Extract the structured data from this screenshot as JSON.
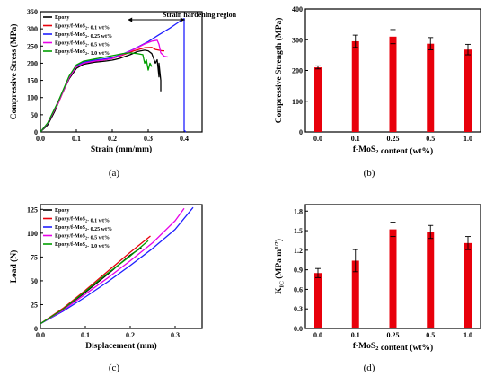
{
  "figure": {
    "panel_labels": [
      "(a)",
      "(b)",
      "(c)",
      "(d)"
    ]
  },
  "chart_data": [
    {
      "id": "a",
      "type": "line",
      "xlabel": "Strain (mm/mm)",
      "ylabel": "Compressive Stress (MPa)",
      "xlim": [
        0.0,
        0.45
      ],
      "ylim": [
        0,
        350
      ],
      "xticks": [
        "0.0",
        "0.1",
        "0.2",
        "0.3",
        "0.4"
      ],
      "yticks": [
        "0",
        "50",
        "100",
        "150",
        "200",
        "250",
        "300",
        "350"
      ],
      "annotation": "Strain hardening region",
      "legend_position": "top-left",
      "series": [
        {
          "name": "Epoxy",
          "color": "#000000",
          "x": [
            0.0,
            0.02,
            0.04,
            0.06,
            0.08,
            0.1,
            0.12,
            0.15,
            0.18,
            0.2,
            0.22,
            0.25,
            0.27,
            0.29,
            0.3,
            0.31,
            0.32,
            0.325,
            0.33,
            0.33,
            0.335,
            0.335
          ],
          "y": [
            0,
            20,
            60,
            110,
            155,
            185,
            197,
            203,
            206,
            209,
            214,
            225,
            234,
            238,
            236,
            228,
            200,
            210,
            160,
            200,
            150,
            118
          ]
        },
        {
          "name": "Epoxy/f-MoS2- 0.1 wt%",
          "color": "#e8000b",
          "x": [
            0.0,
            0.02,
            0.05,
            0.08,
            0.1,
            0.12,
            0.15,
            0.18,
            0.2,
            0.23,
            0.26,
            0.29,
            0.31,
            0.32,
            0.33,
            0.34,
            0.345
          ],
          "y": [
            0,
            25,
            85,
            158,
            190,
            200,
            206,
            210,
            214,
            224,
            236,
            245,
            246,
            240,
            238,
            236,
            236
          ]
        },
        {
          "name": "Epoxy/f-MoS2- 0.25 wt%",
          "color": "#1f1fff",
          "x": [
            0.0,
            0.02,
            0.05,
            0.08,
            0.1,
            0.12,
            0.15,
            0.18,
            0.2,
            0.23,
            0.26,
            0.3,
            0.33,
            0.36,
            0.38,
            0.395,
            0.4,
            0.4,
            0.405
          ],
          "y": [
            0,
            25,
            88,
            160,
            192,
            203,
            209,
            213,
            216,
            227,
            241,
            263,
            283,
            302,
            316,
            327,
            330,
            5,
            0
          ]
        },
        {
          "name": "Epoxy/f-MoS2- 0.5 wt%",
          "color": "#e800e8",
          "x": [
            0.0,
            0.02,
            0.05,
            0.08,
            0.1,
            0.12,
            0.15,
            0.18,
            0.2,
            0.23,
            0.26,
            0.29,
            0.31,
            0.325,
            0.33,
            0.335,
            0.345,
            0.355
          ],
          "y": [
            0,
            25,
            86,
            158,
            190,
            200,
            206,
            210,
            214,
            226,
            240,
            256,
            264,
            267,
            255,
            230,
            220,
            218
          ]
        },
        {
          "name": "Epoxy/f-MoS2- 1.0 wt%",
          "color": "#009e00",
          "x": [
            0.0,
            0.02,
            0.05,
            0.08,
            0.1,
            0.12,
            0.15,
            0.18,
            0.2,
            0.23,
            0.25,
            0.27,
            0.285,
            0.29,
            0.295,
            0.3,
            0.305,
            0.31
          ],
          "y": [
            0,
            26,
            90,
            163,
            195,
            206,
            212,
            218,
            222,
            228,
            230,
            228,
            225,
            200,
            210,
            180,
            200,
            190
          ]
        }
      ]
    },
    {
      "id": "b",
      "type": "bar",
      "xlabel": "f-MoS2 content (wt%)",
      "ylabel": "Compressive Strength (MPa)",
      "ylim": [
        0,
        400
      ],
      "yticks": [
        "0",
        "100",
        "200",
        "300",
        "400"
      ],
      "categories": [
        "0.0",
        "0.1",
        "0.25",
        "0.5",
        "1.0"
      ],
      "values": [
        210,
        295,
        310,
        287,
        268
      ],
      "errors": [
        5,
        20,
        23,
        20,
        17
      ],
      "bar_color": "#e8000b"
    },
    {
      "id": "c",
      "type": "line",
      "xlabel": "Displacement (mm)",
      "ylabel": "Load (N)",
      "xlim": [
        0.0,
        0.36
      ],
      "ylim": [
        0,
        130
      ],
      "xticks": [
        "0.0",
        "0.1",
        "0.2",
        "0.3"
      ],
      "yticks": [
        "0",
        "25",
        "50",
        "75",
        "100",
        "125"
      ],
      "legend_position": "top-left",
      "series": [
        {
          "name": "Epoxy",
          "color": "#000000",
          "x": [
            0.0,
            0.05,
            0.1,
            0.15,
            0.2,
            0.225
          ],
          "y": [
            5,
            20,
            38,
            57,
            77,
            85
          ]
        },
        {
          "name": "Epoxy/f-MoS2- 0.1 wt%",
          "color": "#e8000b",
          "x": [
            0.0,
            0.05,
            0.1,
            0.15,
            0.2,
            0.245
          ],
          "y": [
            5,
            21,
            40,
            60,
            80,
            97
          ]
        },
        {
          "name": "Epoxy/f-MoS2- 0.25 wt%",
          "color": "#1f1fff",
          "x": [
            0.0,
            0.05,
            0.1,
            0.15,
            0.2,
            0.25,
            0.3,
            0.34
          ],
          "y": [
            5,
            18,
            33,
            49,
            66,
            84,
            104,
            127
          ]
        },
        {
          "name": "Epoxy/f-MoS2- 0.5 wt%",
          "color": "#e800e8",
          "x": [
            0.0,
            0.05,
            0.1,
            0.15,
            0.2,
            0.25,
            0.3,
            0.32
          ],
          "y": [
            5,
            19,
            36,
            53,
            71,
            90,
            113,
            126
          ]
        },
        {
          "name": "Epoxy/f-MoS2- 1.0 wt%",
          "color": "#009e00",
          "x": [
            0.0,
            0.05,
            0.1,
            0.15,
            0.2,
            0.24
          ],
          "y": [
            5,
            20,
            39,
            58,
            76,
            92
          ]
        }
      ]
    },
    {
      "id": "d",
      "type": "bar",
      "xlabel": "f-MoS2 content (wt%)",
      "ylabel": "KIC (MPa m1/2)",
      "ylim": [
        0.0,
        1.9
      ],
      "yticks": [
        "0.0",
        "0.3",
        "0.6",
        "0.9",
        "1.2",
        "1.5",
        "1.8"
      ],
      "categories": [
        "0.0",
        "0.1",
        "0.25",
        "0.5",
        "1.0"
      ],
      "values": [
        0.85,
        1.04,
        1.52,
        1.48,
        1.31
      ],
      "errors": [
        0.07,
        0.17,
        0.11,
        0.1,
        0.1
      ],
      "bar_color": "#e8000b"
    }
  ]
}
